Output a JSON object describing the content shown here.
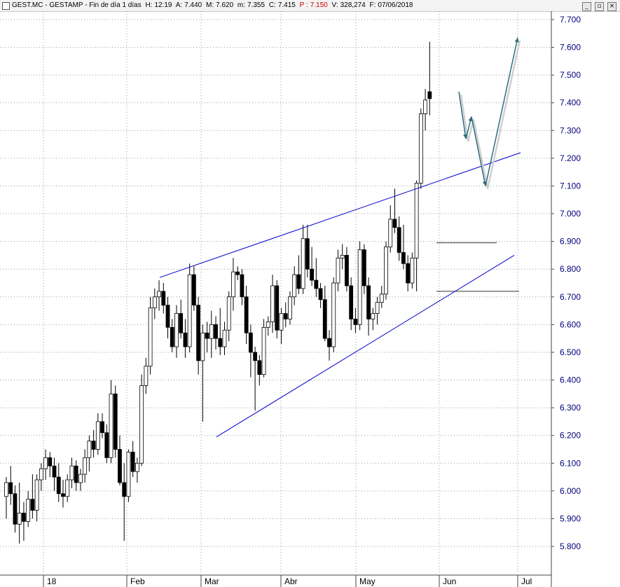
{
  "header": {
    "symbol": "GEST.MC - GESTAMP - Fin de día 1 días",
    "h_label": "H:",
    "h_value": "12:19",
    "a_label": "A:",
    "a_value": "7.440",
    "max_label": "M:",
    "max_value": "7.620",
    "min_label": "m:",
    "min_value": "7.355",
    "c_label": "C:",
    "c_value": "7.415",
    "p_label": "P :",
    "p_value": "7.150",
    "v_label": "V:",
    "v_value": "328,274",
    "f_label": "F:",
    "f_value": "07/06/2018",
    "buttons": {
      "minimize": "_",
      "restore": "▫",
      "close": "×"
    }
  },
  "colors": {
    "background": "#ffffff",
    "axis_text": "#00007a",
    "grid": "#9a9a9a",
    "trendline": "#0000cc",
    "forecast": "#2c6e7e",
    "up": "#ffffff",
    "down": "#000000"
  },
  "chart_data": {
    "type": "candlestick",
    "ylim": [
      5.75,
      7.72
    ],
    "yticks": [
      "5.800",
      "5.900",
      "6.000",
      "6.100",
      "6.200",
      "6.300",
      "6.400",
      "6.500",
      "6.600",
      "6.700",
      "6.800",
      "6.900",
      "7.000",
      "7.100",
      "7.200",
      "7.300",
      "7.400",
      "7.500",
      "7.600",
      "7.700"
    ],
    "xticks": [
      "18",
      "Feb",
      "Mar",
      "Abr",
      "May",
      "Jun",
      "Jul"
    ],
    "ohlc": [
      [
        5.98,
        6.05,
        5.9,
        6.03
      ],
      [
        6.03,
        6.09,
        5.95,
        5.99
      ],
      [
        5.99,
        6.02,
        5.85,
        5.88
      ],
      [
        5.88,
        6.03,
        5.81,
        5.92
      ],
      [
        5.92,
        5.96,
        5.82,
        5.89
      ],
      [
        5.89,
        6.0,
        5.87,
        5.97
      ],
      [
        5.97,
        6.06,
        5.9,
        5.93
      ],
      [
        5.93,
        6.06,
        5.89,
        6.04
      ],
      [
        6.04,
        6.1,
        6.0,
        6.08
      ],
      [
        6.08,
        6.15,
        6.04,
        6.12
      ],
      [
        6.12,
        6.14,
        6.05,
        6.09
      ],
      [
        6.09,
        6.12,
        6.0,
        6.05
      ],
      [
        6.05,
        6.1,
        5.96,
        5.99
      ],
      [
        5.99,
        6.04,
        5.94,
        5.98
      ],
      [
        5.98,
        6.06,
        5.96,
        6.04
      ],
      [
        6.04,
        6.12,
        6.01,
        6.09
      ],
      [
        6.09,
        6.11,
        6.0,
        6.03
      ],
      [
        6.03,
        6.08,
        6.0,
        6.06
      ],
      [
        6.06,
        6.15,
        6.03,
        6.12
      ],
      [
        6.12,
        6.2,
        6.07,
        6.18
      ],
      [
        6.18,
        6.22,
        6.12,
        6.15
      ],
      [
        6.15,
        6.28,
        6.13,
        6.25
      ],
      [
        6.25,
        6.28,
        6.19,
        6.21
      ],
      [
        6.21,
        6.24,
        6.1,
        6.12
      ],
      [
        6.12,
        6.4,
        6.1,
        6.35
      ],
      [
        6.35,
        6.38,
        6.12,
        6.15
      ],
      [
        6.15,
        6.2,
        6.02,
        6.03
      ],
      [
        6.03,
        6.1,
        5.82,
        5.98
      ],
      [
        5.98,
        6.15,
        5.96,
        6.14
      ],
      [
        6.14,
        6.18,
        6.05,
        6.07
      ],
      [
        6.07,
        6.12,
        6.03,
        6.1
      ],
      [
        6.1,
        6.42,
        6.09,
        6.38
      ],
      [
        6.38,
        6.48,
        6.35,
        6.45
      ],
      [
        6.45,
        6.7,
        6.42,
        6.66
      ],
      [
        6.66,
        6.73,
        6.62,
        6.7
      ],
      [
        6.7,
        6.76,
        6.65,
        6.72
      ],
      [
        6.72,
        6.75,
        6.64,
        6.67
      ],
      [
        6.67,
        6.7,
        6.55,
        6.59
      ],
      [
        6.59,
        6.62,
        6.5,
        6.52
      ],
      [
        6.52,
        6.67,
        6.48,
        6.64
      ],
      [
        6.64,
        6.69,
        6.55,
        6.57
      ],
      [
        6.57,
        6.62,
        6.48,
        6.52
      ],
      [
        6.52,
        6.82,
        6.5,
        6.78
      ],
      [
        6.78,
        6.81,
        6.65,
        6.67
      ],
      [
        6.67,
        6.7,
        6.42,
        6.47
      ],
      [
        6.47,
        6.6,
        6.25,
        6.57
      ],
      [
        6.57,
        6.61,
        6.5,
        6.55
      ],
      [
        6.55,
        6.65,
        6.48,
        6.6
      ],
      [
        6.6,
        6.63,
        6.51,
        6.55
      ],
      [
        6.55,
        6.66,
        6.49,
        6.52
      ],
      [
        6.52,
        6.61,
        6.49,
        6.58
      ],
      [
        6.58,
        6.72,
        6.54,
        6.7
      ],
      [
        6.7,
        6.84,
        6.65,
        6.79
      ],
      [
        6.79,
        6.81,
        6.76,
        6.78
      ],
      [
        6.78,
        6.8,
        6.67,
        6.7
      ],
      [
        6.7,
        6.74,
        6.53,
        6.57
      ],
      [
        6.57,
        6.6,
        6.41,
        6.5
      ],
      [
        6.5,
        6.52,
        6.29,
        6.47
      ],
      [
        6.47,
        6.49,
        6.38,
        6.42
      ],
      [
        6.42,
        6.62,
        6.41,
        6.59
      ],
      [
        6.59,
        6.63,
        6.56,
        6.61
      ],
      [
        6.61,
        6.78,
        6.57,
        6.74
      ],
      [
        6.74,
        6.76,
        6.55,
        6.58
      ],
      [
        6.58,
        6.66,
        6.53,
        6.64
      ],
      [
        6.64,
        6.68,
        6.59,
        6.62
      ],
      [
        6.62,
        6.72,
        6.6,
        6.7
      ],
      [
        6.7,
        6.81,
        6.67,
        6.78
      ],
      [
        6.78,
        6.85,
        6.71,
        6.73
      ],
      [
        6.73,
        6.96,
        6.71,
        6.91
      ],
      [
        6.91,
        6.96,
        6.77,
        6.8
      ],
      [
        6.8,
        6.88,
        6.74,
        6.76
      ],
      [
        6.76,
        6.84,
        6.7,
        6.73
      ],
      [
        6.73,
        6.75,
        6.66,
        6.69
      ],
      [
        6.69,
        6.74,
        6.54,
        6.55
      ],
      [
        6.55,
        6.58,
        6.47,
        6.52
      ],
      [
        6.52,
        6.77,
        6.5,
        6.75
      ],
      [
        6.75,
        6.87,
        6.72,
        6.84
      ],
      [
        6.84,
        6.89,
        6.8,
        6.85
      ],
      [
        6.85,
        6.88,
        6.72,
        6.74
      ],
      [
        6.74,
        6.77,
        6.58,
        6.62
      ],
      [
        6.62,
        6.66,
        6.57,
        6.6
      ],
      [
        6.6,
        6.9,
        6.58,
        6.87
      ],
      [
        6.87,
        6.89,
        6.71,
        6.74
      ],
      [
        6.74,
        6.77,
        6.56,
        6.62
      ],
      [
        6.62,
        6.66,
        6.58,
        6.64
      ],
      [
        6.64,
        6.7,
        6.6,
        6.68
      ],
      [
        6.68,
        6.74,
        6.66,
        6.71
      ],
      [
        6.71,
        6.9,
        6.69,
        6.88
      ],
      [
        6.88,
        7.03,
        6.86,
        6.98
      ],
      [
        6.98,
        7.09,
        6.93,
        6.95
      ],
      [
        6.95,
        6.99,
        6.83,
        6.86
      ],
      [
        6.86,
        6.96,
        6.8,
        6.82
      ],
      [
        6.82,
        6.85,
        6.72,
        6.75
      ],
      [
        6.75,
        6.86,
        6.73,
        6.84
      ],
      [
        6.84,
        7.12,
        6.72,
        7.11
      ],
      [
        7.11,
        7.38,
        7.09,
        7.36
      ],
      [
        7.36,
        7.45,
        7.3,
        7.41
      ],
      [
        7.44,
        7.62,
        7.355,
        7.415
      ]
    ],
    "trendlines": [
      {
        "from": [
          0,
          6.77
        ],
        "to": [
          100,
          7.22
        ]
      },
      {
        "from": [
          0,
          6.195
        ],
        "to": [
          100,
          6.85
        ]
      }
    ],
    "levels": [
      6.895,
      6.72
    ],
    "forecast": [
      7.44,
      7.27,
      7.35,
      7.1,
      7.635
    ]
  }
}
